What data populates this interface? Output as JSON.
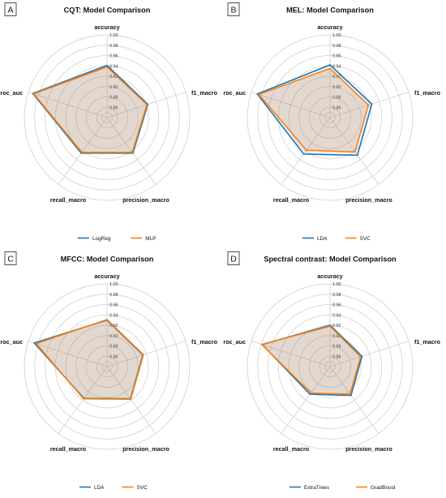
{
  "chart_data": [
    {
      "panel_label": "A",
      "type": "radar",
      "title": "CQT: Model Comparison",
      "axes": [
        "accuracy",
        "f1_macro",
        "precision_macro",
        "recall_macro",
        "roc_auc"
      ],
      "radial_ticks": [
        "0.86",
        "0.88",
        "0.90",
        "0.92",
        "0.94",
        "0.96",
        "0.98",
        "1.00"
      ],
      "rlim": [
        0.84,
        1.0
      ],
      "grid": true,
      "legend_position": "bottom",
      "series": [
        {
          "name": "LogReg",
          "color": "#1f77b4",
          "values": [
            0.941,
            0.923,
            0.925,
            0.925,
            0.991
          ]
        },
        {
          "name": "MLP",
          "color": "#ff7f0e",
          "values": [
            0.938,
            0.921,
            0.923,
            0.923,
            0.989
          ]
        }
      ]
    },
    {
      "panel_label": "B",
      "type": "radar",
      "title": "MEL: Model Comparison",
      "axes": [
        "accuracy",
        "f1_macro",
        "precision_macro",
        "recall_macro",
        "roc_auc"
      ],
      "radial_ticks": [
        "0.86",
        "0.88",
        "0.90",
        "0.92",
        "0.94",
        "0.96",
        "0.98",
        "1.00"
      ],
      "rlim": [
        0.84,
        1.0
      ],
      "grid": true,
      "legend_position": "bottom",
      "series": [
        {
          "name": "LDA",
          "color": "#1f77b4",
          "values": [
            0.942,
            0.925,
            0.93,
            0.927,
            0.988
          ]
        },
        {
          "name": "SVC",
          "color": "#ff7f0e",
          "values": [
            0.935,
            0.918,
            0.922,
            0.918,
            0.985
          ]
        }
      ]
    },
    {
      "panel_label": "C",
      "type": "radar",
      "title": "MFCC: Model Comparison",
      "axes": [
        "accuracy",
        "f1_macro",
        "precision_macro",
        "recall_macro",
        "roc_auc"
      ],
      "radial_ticks": [
        "0.86",
        "0.88",
        "0.90",
        "0.92",
        "0.94",
        "0.96",
        "0.98",
        "1.00"
      ],
      "rlim": [
        0.84,
        1.0
      ],
      "grid": true,
      "legend_position": "bottom",
      "series": [
        {
          "name": "LDA",
          "color": "#1f77b4",
          "values": [
            0.93,
            0.913,
            0.917,
            0.916,
            0.988
          ]
        },
        {
          "name": "SVC",
          "color": "#ff7f0e",
          "values": [
            0.931,
            0.914,
            0.918,
            0.917,
            0.984
          ]
        }
      ]
    },
    {
      "panel_label": "D",
      "type": "radar",
      "title": "Spectral contrast: Model Comparison",
      "axes": [
        "accuracy",
        "f1_macro",
        "precision_macro",
        "recall_macro",
        "roc_auc"
      ],
      "radial_ticks": [
        "0.86",
        "0.88",
        "0.90",
        "0.92",
        "0.94",
        "0.96",
        "0.98",
        "1.00"
      ],
      "rlim": [
        0.84,
        1.0
      ],
      "grid": true,
      "legend_position": "bottom",
      "series": [
        {
          "name": "ExtraTrees",
          "color": "#1f77b4",
          "values": [
            0.92,
            0.905,
            0.909,
            0.906,
            0.978
          ]
        },
        {
          "name": "GradBoost",
          "color": "#ff7f0e",
          "values": [
            0.918,
            0.902,
            0.906,
            0.903,
            0.979
          ]
        }
      ]
    }
  ]
}
